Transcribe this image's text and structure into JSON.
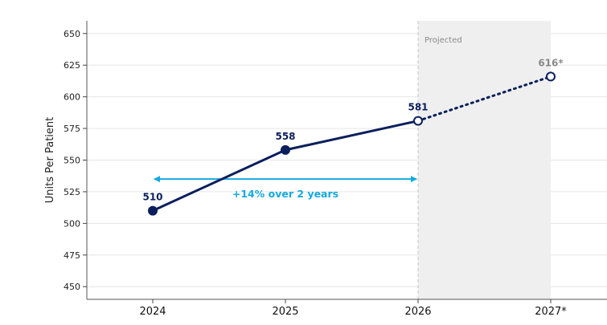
{
  "chart_data": {
    "type": "line",
    "title": "",
    "xlabel": "",
    "ylabel": "Units Per Patient",
    "categories": [
      "2024",
      "2025",
      "2026",
      "2027*"
    ],
    "series": [
      {
        "values": [
          510,
          558,
          581,
          616
        ]
      }
    ],
    "data_labels": [
      "510",
      "558",
      "581",
      "616*"
    ],
    "actual_points": 3,
    "projected_points": 1,
    "ylim": [
      440,
      660
    ],
    "yticks": [
      450,
      475,
      500,
      525,
      550,
      575,
      600,
      625,
      650
    ],
    "grid": "horizontal",
    "projected_region_label": "Projected",
    "annotation": {
      "text": "+14% over 2 years",
      "from_category": "2024",
      "to_category": "2026",
      "at_value": 535
    },
    "colors": {
      "actual_line": "#0b1f5c",
      "projected_label": "#8a8a8a",
      "annotation": "#14a9e0",
      "projected_region": "#efefef",
      "grid": "#e6e6e6"
    }
  }
}
